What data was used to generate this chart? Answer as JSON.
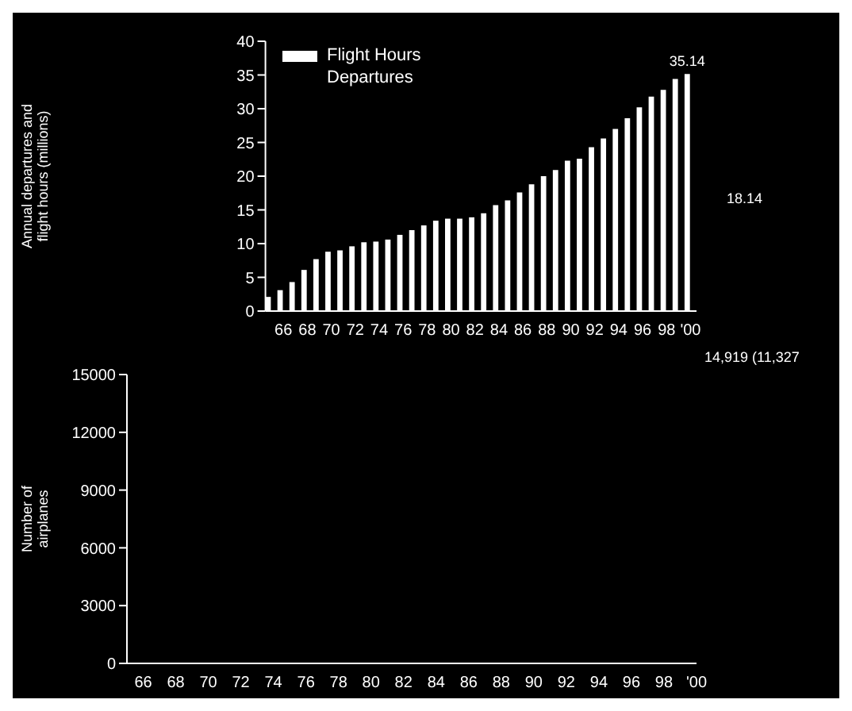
{
  "chart_data": [
    {
      "type": "bar",
      "ylabel": "Annual departures and flight hours (millions)",
      "categories": [
        null,
        "66",
        null,
        "68",
        null,
        "70",
        null,
        "72",
        null,
        "74",
        null,
        "76",
        null,
        "78",
        null,
        "80",
        null,
        "82",
        null,
        "84",
        null,
        "86",
        null,
        "88",
        null,
        "90",
        null,
        "92",
        null,
        "94",
        null,
        "96",
        null,
        "98",
        null,
        "'00"
      ],
      "series": [
        {
          "name": "Flight Hours",
          "color": "#ffffff",
          "values": [
            2.1,
            3.1,
            4.3,
            6.1,
            7.7,
            8.8,
            9,
            9.6,
            10.2,
            10.3,
            10.6,
            11.3,
            12,
            12.7,
            13.4,
            13.7,
            13.7,
            13.9,
            14.5,
            15.7,
            16.4,
            17.6,
            18.8,
            20,
            20.9,
            22.3,
            22.6,
            24.3,
            25.6,
            27,
            28.6,
            30.2,
            31.8,
            32.8,
            34.4,
            35.14
          ],
          "value_labels": [
            null,
            null,
            null,
            null,
            null,
            null,
            null,
            null,
            null,
            null,
            null,
            null,
            null,
            null,
            null,
            null,
            null,
            null,
            null,
            null,
            null,
            null,
            null,
            null,
            null,
            null,
            null,
            null,
            null,
            null,
            null,
            null,
            null,
            null,
            null,
            "35.14"
          ]
        },
        {
          "name": "Departures",
          "values": [
            null,
            null,
            null,
            null,
            null,
            null,
            null,
            null,
            null,
            null,
            null,
            null,
            null,
            null,
            null,
            null,
            null,
            null,
            null,
            null,
            null,
            null,
            null,
            null,
            null,
            null,
            null,
            null,
            null,
            null,
            null,
            null,
            null,
            null,
            null,
            null
          ]
        }
      ],
      "ylim": [
        0,
        40
      ],
      "yticks": [
        0,
        5,
        10,
        15,
        20,
        25,
        30,
        35,
        40
      ],
      "legend": "top left",
      "annotations": [
        "18.14"
      ]
    },
    {
      "type": "line",
      "ylabel": "Number of airplanes",
      "categories": [
        null,
        "66",
        null,
        "68",
        null,
        "70",
        null,
        "72",
        null,
        "74",
        null,
        "76",
        null,
        "78",
        null,
        "80",
        null,
        "82",
        null,
        "84",
        null,
        "86",
        null,
        "88",
        null,
        "90",
        null,
        "92",
        null,
        "94",
        null,
        "96",
        null,
        "98",
        null,
        "'00"
      ],
      "values": [
        null,
        null,
        null,
        null,
        null,
        null,
        null,
        null,
        null,
        null,
        null,
        null,
        null,
        null,
        null,
        null,
        null,
        null,
        null,
        null,
        null,
        null,
        null,
        null,
        null,
        null,
        null,
        null,
        null,
        null,
        null,
        null,
        null,
        null,
        null,
        null
      ],
      "ylim": [
        0,
        15000
      ],
      "yticks": [
        0,
        3000,
        6000,
        9000,
        12000,
        15000
      ],
      "annotations": [
        "14,919 (11,327"
      ]
    }
  ]
}
